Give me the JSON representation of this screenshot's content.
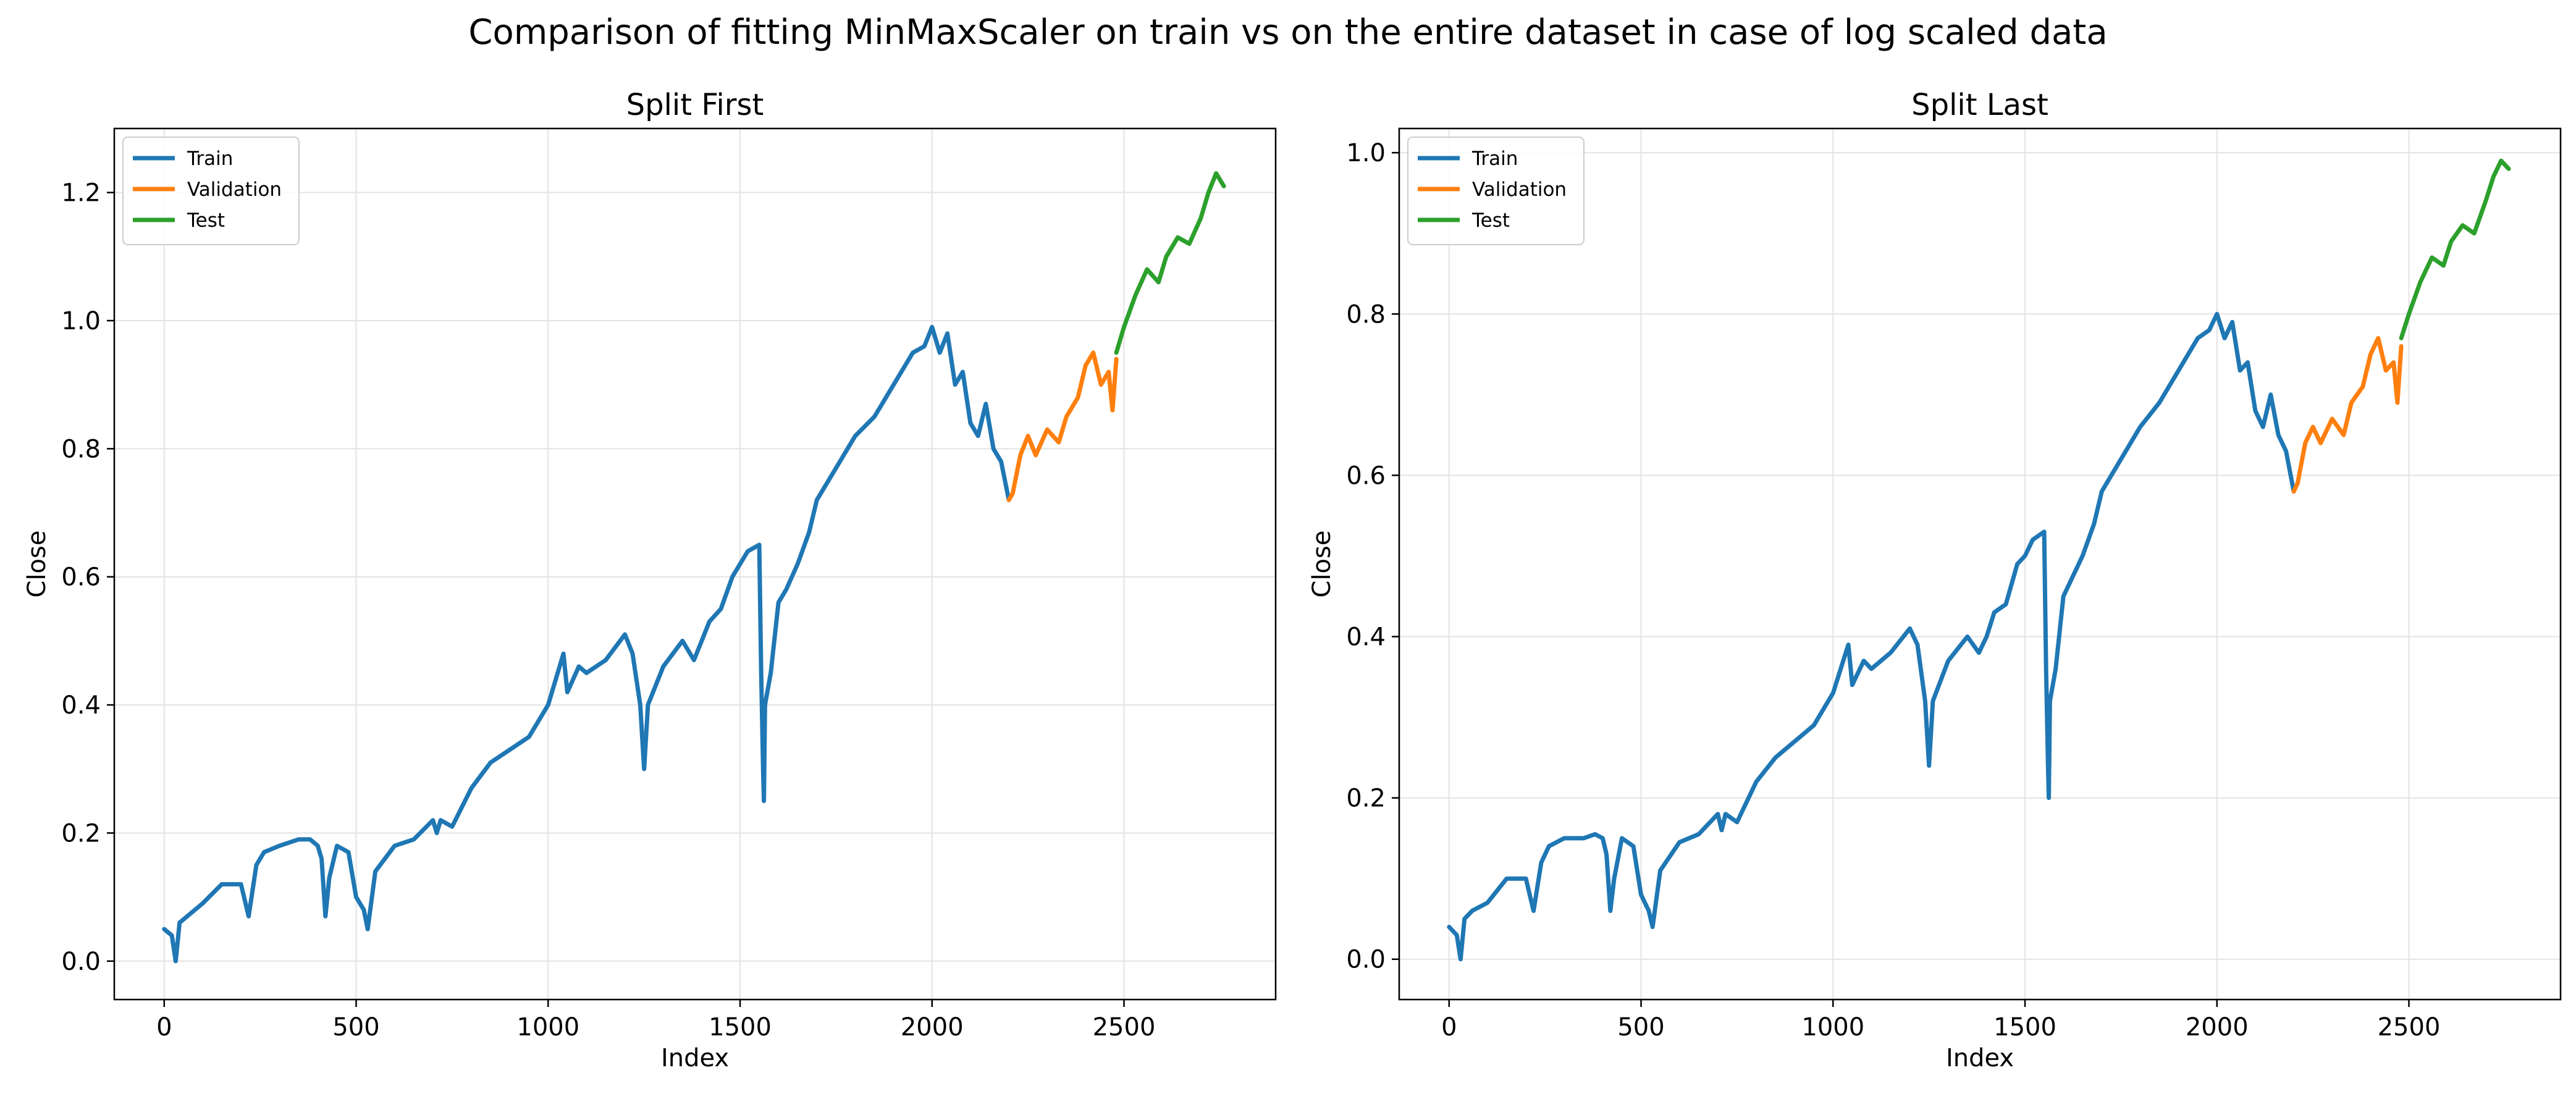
{
  "suptitle": "Comparison of fitting MinMaxScaler on train vs on the entire dataset in case of log scaled data",
  "colors": {
    "train": "#1f77b4",
    "validation": "#ff7f0e",
    "test": "#2ca02c",
    "grid": "#e3e3e3"
  },
  "chart_data": [
    {
      "type": "line",
      "title": "Split First",
      "xlabel": "Index",
      "ylabel": "Close",
      "xlim": [
        -130,
        2895
      ],
      "ylim": [
        -0.06,
        1.3
      ],
      "xticks": [
        0,
        500,
        1000,
        1500,
        2000,
        2500
      ],
      "yticks": [
        0.0,
        0.2,
        0.4,
        0.6,
        0.8,
        1.0,
        1.2
      ],
      "grid": true,
      "legend_position": "upper-left",
      "series": [
        {
          "name": "Train",
          "color": "#1f77b4",
          "x": [
            0,
            20,
            30,
            40,
            60,
            100,
            150,
            200,
            220,
            240,
            260,
            300,
            350,
            380,
            400,
            410,
            420,
            430,
            450,
            480,
            500,
            520,
            530,
            550,
            600,
            650,
            700,
            710,
            720,
            750,
            800,
            850,
            900,
            950,
            1000,
            1020,
            1040,
            1050,
            1080,
            1100,
            1150,
            1200,
            1220,
            1240,
            1250,
            1260,
            1300,
            1350,
            1380,
            1400,
            1420,
            1450,
            1480,
            1500,
            1520,
            1550,
            1555,
            1560,
            1562,
            1565,
            1580,
            1600,
            1620,
            1650,
            1680,
            1700,
            1750,
            1800,
            1850,
            1900,
            1950,
            1980,
            2000,
            2020,
            2040,
            2060,
            2080,
            2100,
            2120,
            2140,
            2160,
            2180,
            2200
          ],
          "y": [
            0.05,
            0.04,
            0.0,
            0.06,
            0.07,
            0.09,
            0.12,
            0.12,
            0.07,
            0.15,
            0.17,
            0.18,
            0.19,
            0.19,
            0.18,
            0.16,
            0.07,
            0.13,
            0.18,
            0.17,
            0.1,
            0.08,
            0.05,
            0.14,
            0.18,
            0.19,
            0.22,
            0.2,
            0.22,
            0.21,
            0.27,
            0.31,
            0.33,
            0.35,
            0.4,
            0.44,
            0.48,
            0.42,
            0.46,
            0.45,
            0.47,
            0.51,
            0.48,
            0.4,
            0.3,
            0.4,
            0.46,
            0.5,
            0.47,
            0.5,
            0.53,
            0.55,
            0.6,
            0.62,
            0.64,
            0.65,
            0.45,
            0.3,
            0.25,
            0.4,
            0.45,
            0.56,
            0.58,
            0.62,
            0.67,
            0.72,
            0.77,
            0.82,
            0.85,
            0.9,
            0.95,
            0.96,
            0.99,
            0.95,
            0.98,
            0.9,
            0.92,
            0.84,
            0.82,
            0.87,
            0.8,
            0.78,
            0.72
          ]
        },
        {
          "name": "Validation",
          "color": "#ff7f0e",
          "x": [
            2200,
            2210,
            2230,
            2250,
            2270,
            2300,
            2330,
            2350,
            2380,
            2400,
            2420,
            2440,
            2460,
            2470,
            2480
          ],
          "y": [
            0.72,
            0.73,
            0.79,
            0.82,
            0.79,
            0.83,
            0.81,
            0.85,
            0.88,
            0.93,
            0.95,
            0.9,
            0.92,
            0.86,
            0.94
          ]
        },
        {
          "name": "Test",
          "color": "#2ca02c",
          "x": [
            2480,
            2500,
            2530,
            2560,
            2590,
            2610,
            2640,
            2670,
            2700,
            2720,
            2740,
            2760
          ],
          "y": [
            0.95,
            0.99,
            1.04,
            1.08,
            1.06,
            1.1,
            1.13,
            1.12,
            1.16,
            1.2,
            1.23,
            1.21
          ]
        }
      ]
    },
    {
      "type": "line",
      "title": "Split Last",
      "xlabel": "Index",
      "ylabel": "Close",
      "xlim": [
        -130,
        2895
      ],
      "ylim": [
        -0.05,
        1.03
      ],
      "xticks": [
        0,
        500,
        1000,
        1500,
        2000,
        2500
      ],
      "yticks": [
        0.0,
        0.2,
        0.4,
        0.6,
        0.8,
        1.0
      ],
      "grid": true,
      "legend_position": "upper-left",
      "series": [
        {
          "name": "Train",
          "color": "#1f77b4",
          "x": [
            0,
            20,
            30,
            40,
            60,
            100,
            150,
            200,
            220,
            240,
            260,
            300,
            350,
            380,
            400,
            410,
            420,
            430,
            450,
            480,
            500,
            520,
            530,
            550,
            600,
            650,
            700,
            710,
            720,
            750,
            800,
            850,
            900,
            950,
            1000,
            1020,
            1040,
            1050,
            1080,
            1100,
            1150,
            1200,
            1220,
            1240,
            1250,
            1260,
            1300,
            1350,
            1380,
            1400,
            1420,
            1450,
            1480,
            1500,
            1520,
            1550,
            1555,
            1560,
            1562,
            1565,
            1580,
            1600,
            1620,
            1650,
            1680,
            1700,
            1750,
            1800,
            1850,
            1900,
            1950,
            1980,
            2000,
            2020,
            2040,
            2060,
            2080,
            2100,
            2120,
            2140,
            2160,
            2180,
            2200
          ],
          "y": [
            0.04,
            0.03,
            0.0,
            0.05,
            0.06,
            0.07,
            0.1,
            0.1,
            0.06,
            0.12,
            0.14,
            0.15,
            0.15,
            0.155,
            0.15,
            0.13,
            0.06,
            0.1,
            0.15,
            0.14,
            0.08,
            0.06,
            0.04,
            0.11,
            0.145,
            0.155,
            0.18,
            0.16,
            0.18,
            0.17,
            0.22,
            0.25,
            0.27,
            0.29,
            0.33,
            0.36,
            0.39,
            0.34,
            0.37,
            0.36,
            0.38,
            0.41,
            0.39,
            0.32,
            0.24,
            0.32,
            0.37,
            0.4,
            0.38,
            0.4,
            0.43,
            0.44,
            0.49,
            0.5,
            0.52,
            0.53,
            0.36,
            0.24,
            0.2,
            0.32,
            0.36,
            0.45,
            0.47,
            0.5,
            0.54,
            0.58,
            0.62,
            0.66,
            0.69,
            0.73,
            0.77,
            0.78,
            0.8,
            0.77,
            0.79,
            0.73,
            0.74,
            0.68,
            0.66,
            0.7,
            0.65,
            0.63,
            0.58
          ]
        },
        {
          "name": "Validation",
          "color": "#ff7f0e",
          "x": [
            2200,
            2210,
            2230,
            2250,
            2270,
            2300,
            2330,
            2350,
            2380,
            2400,
            2420,
            2440,
            2460,
            2470,
            2480
          ],
          "y": [
            0.58,
            0.59,
            0.64,
            0.66,
            0.64,
            0.67,
            0.65,
            0.69,
            0.71,
            0.75,
            0.77,
            0.73,
            0.74,
            0.69,
            0.76
          ]
        },
        {
          "name": "Test",
          "color": "#2ca02c",
          "x": [
            2480,
            2500,
            2530,
            2560,
            2590,
            2610,
            2640,
            2670,
            2700,
            2720,
            2740,
            2760
          ],
          "y": [
            0.77,
            0.8,
            0.84,
            0.87,
            0.86,
            0.89,
            0.91,
            0.9,
            0.94,
            0.97,
            0.99,
            0.98
          ]
        }
      ]
    }
  ]
}
